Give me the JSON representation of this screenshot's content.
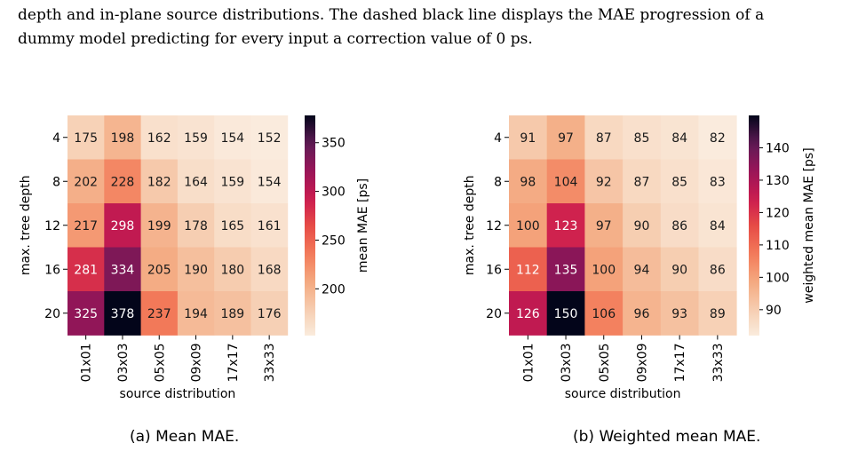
{
  "text": {
    "line1": "depth and in-plane source distributions. The dashed black line displays the MAE progression of a",
    "line2": "dummy model predicting for every input a correction value of 0 ps.",
    "caption_a": "(a) Mean MAE.",
    "caption_b": "(b) Weighted mean MAE."
  },
  "chart_data": [
    {
      "type": "heatmap",
      "xlabel": "source distribution",
      "ylabel": "max. tree depth",
      "categories_x": [
        "01x01",
        "03x03",
        "05x05",
        "09x09",
        "17x17",
        "33x33"
      ],
      "categories_y": [
        "4",
        "8",
        "12",
        "16",
        "20"
      ],
      "values": [
        [
          175,
          198,
          162,
          159,
          154,
          152
        ],
        [
          202,
          228,
          182,
          164,
          159,
          154
        ],
        [
          217,
          298,
          199,
          178,
          165,
          161
        ],
        [
          281,
          334,
          205,
          190,
          180,
          168
        ],
        [
          325,
          378,
          237,
          194,
          189,
          176
        ]
      ],
      "colorbar": {
        "label": "mean MAE [ps]",
        "range": [
          152,
          378
        ],
        "ticks": [
          200,
          250,
          300,
          350
        ]
      },
      "colormap": "rocket_r"
    },
    {
      "type": "heatmap",
      "xlabel": "source distribution",
      "ylabel": "max. tree depth",
      "categories_x": [
        "01x01",
        "03x03",
        "05x05",
        "09x09",
        "17x17",
        "33x33"
      ],
      "categories_y": [
        "4",
        "8",
        "12",
        "16",
        "20"
      ],
      "values": [
        [
          91,
          97,
          87,
          85,
          84,
          82
        ],
        [
          98,
          104,
          92,
          87,
          85,
          83
        ],
        [
          100,
          123,
          97,
          90,
          86,
          84
        ],
        [
          112,
          135,
          100,
          94,
          90,
          86
        ],
        [
          126,
          150,
          106,
          96,
          93,
          89
        ]
      ],
      "colorbar": {
        "label": "weighted mean MAE [ps]",
        "range": [
          82,
          150
        ],
        "ticks": [
          90,
          100,
          110,
          120,
          130,
          140
        ]
      },
      "colormap": "rocket_r"
    }
  ]
}
